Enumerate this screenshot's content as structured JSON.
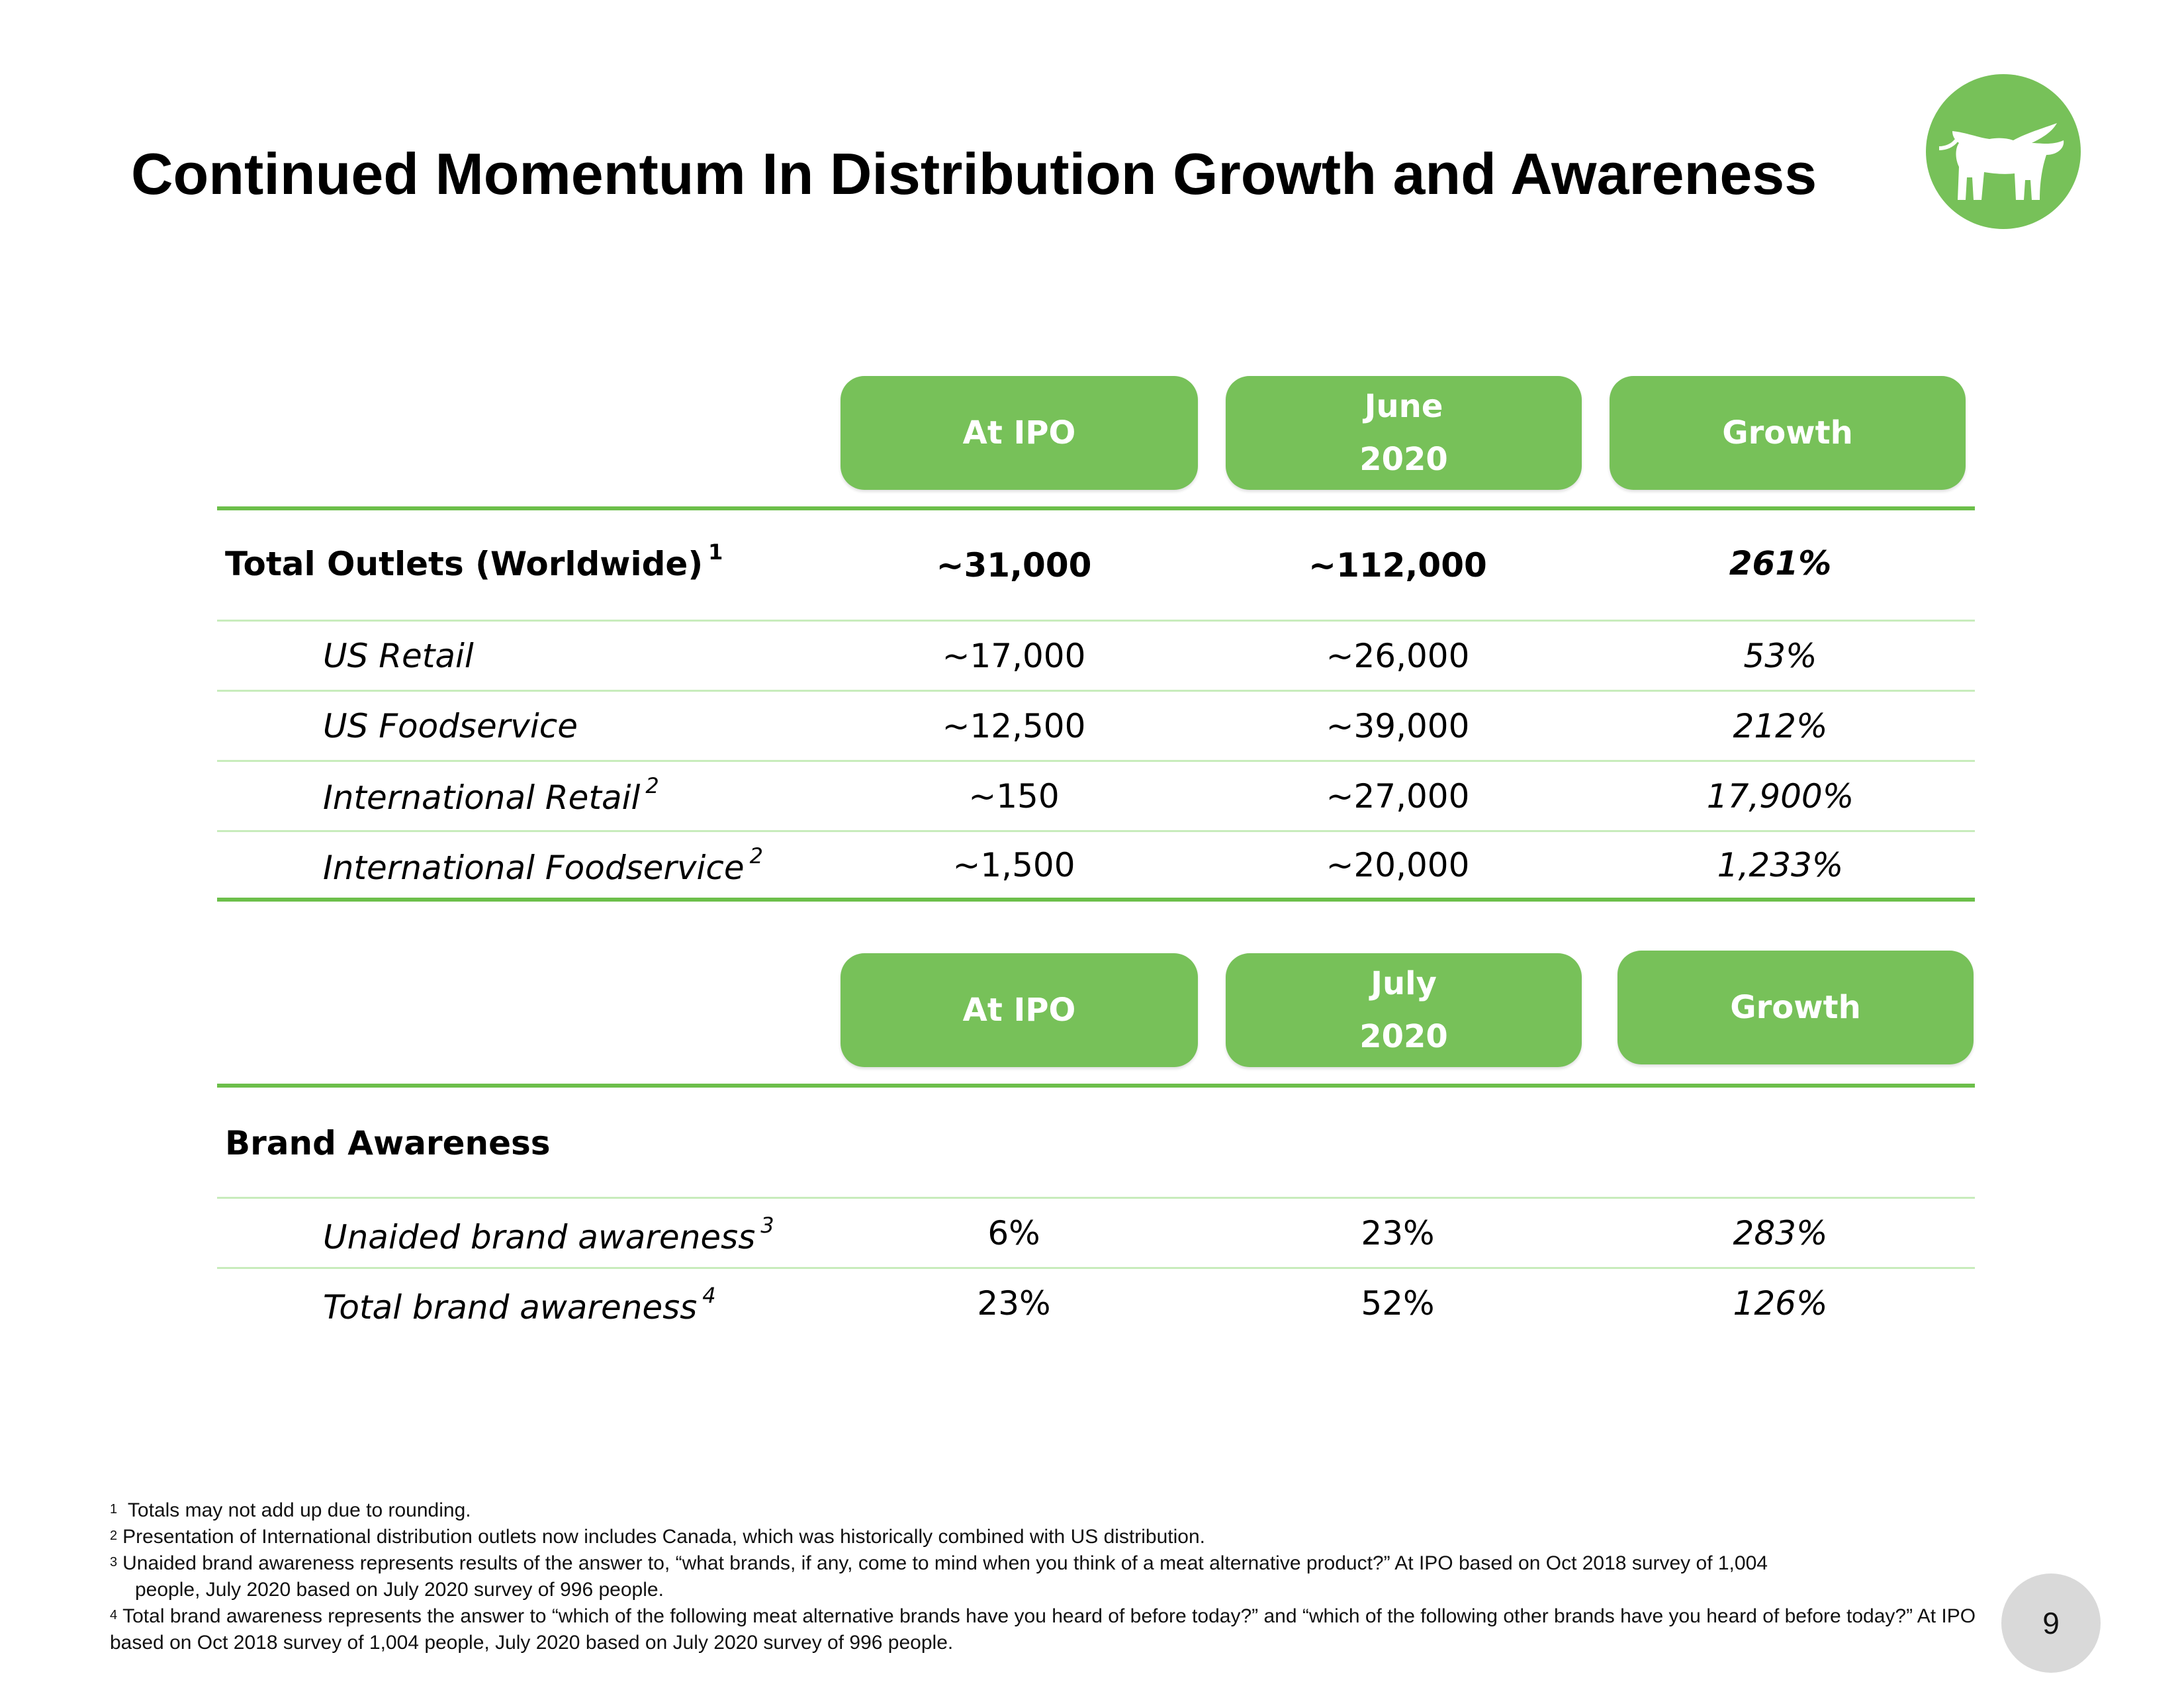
{
  "title": "Continued Momentum In Distribution Growth and Awareness",
  "logo": {
    "icon": "bull-icon",
    "color": "#77c159"
  },
  "distribution": {
    "headers": {
      "col1": "At IPO",
      "col2_line1": "June",
      "col2_line2": "2020",
      "col3": "Growth"
    },
    "total": {
      "label": "Total Outlets (Worldwide)",
      "sup": "1",
      "ipo": "~31,000",
      "current": "~112,000",
      "growth": "261%"
    },
    "rows": [
      {
        "label": "US Retail",
        "sup": "",
        "ipo": "~17,000",
        "current": "~26,000",
        "growth": "53%"
      },
      {
        "label": "US Foodservice",
        "sup": "",
        "ipo": "~12,500",
        "current": "~39,000",
        "growth": "212%"
      },
      {
        "label": "International Retail",
        "sup": "2",
        "ipo": "~150",
        "current": "~27,000",
        "growth": "17,900%"
      },
      {
        "label": "International Foodservice",
        "sup": "2",
        "ipo": "~1,500",
        "current": "~20,000",
        "growth": "1,233%"
      }
    ]
  },
  "awareness": {
    "headers": {
      "col1": "At IPO",
      "col2_line1": "July",
      "col2_line2": "2020",
      "col3": "Growth"
    },
    "section_label": "Brand Awareness",
    "rows": [
      {
        "label": "Unaided brand awareness",
        "sup": "3",
        "ipo": "6%",
        "current": "23%",
        "growth": "283%"
      },
      {
        "label": "Total brand awareness",
        "sup": "4",
        "ipo": "23%",
        "current": "52%",
        "growth": "126%"
      }
    ]
  },
  "footnotes": {
    "n1": {
      "mark": "1",
      "text": "Totals may not add up due to rounding."
    },
    "n2": {
      "mark": "2",
      "text": "Presentation of International distribution outlets now includes Canada, which was historically combined with US distribution."
    },
    "n3": {
      "mark": "3",
      "text": "Unaided brand awareness represents results of the answer to, “what brands, if any, come to mind when you think of a meat alternative product?” At IPO based on Oct 2018 survey of 1,004",
      "cont": "people, July 2020 based on July 2020 survey of 996 people."
    },
    "n4": {
      "mark": "4",
      "text": "Total brand awareness represents the answer to “which of the following meat alternative brands have you heard of before today?” and “which of the following other brands have you heard of before today?” At IPO based on Oct 2018 survey of 1,004 people, July 2020 based on July 2020 survey of 996 people."
    }
  },
  "page_number": "9",
  "colors": {
    "accent": "#77c159",
    "rule": "#6cbf4a",
    "thin_rule": "#c8ecbc",
    "page_badge": "#d9d9d9"
  }
}
